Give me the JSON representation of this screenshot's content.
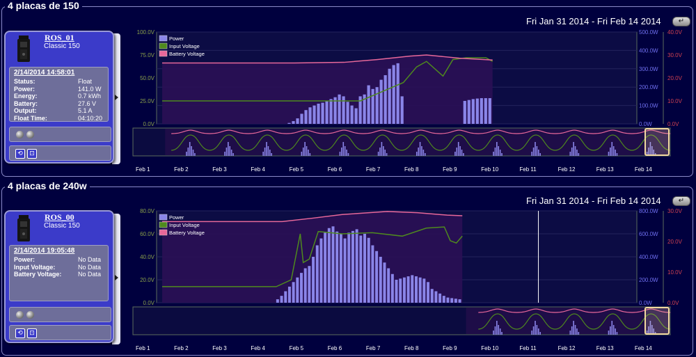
{
  "panels": [
    {
      "title": "4 placas de 150",
      "date_range": "Fri Jan 31 2014 - Fri Feb 14 2014",
      "range_button_icon": "return-arrow-icon",
      "device": {
        "name": "ROS_01",
        "model": "Classic 150",
        "timestamp": "2/14/2014 14:58:01",
        "stats": [
          {
            "label": "Status:",
            "value": "Float"
          },
          {
            "label": "Power:",
            "value": "141.0 W"
          },
          {
            "label": "Energy:",
            "value": "0.7 kWh"
          },
          {
            "label": "Battery:",
            "value": "27.6 V"
          },
          {
            "label": "Output:",
            "value": "5.1 A"
          },
          {
            "label": "Float Time:",
            "value": "04:10:20"
          }
        ]
      },
      "chart_data": {
        "type": "bar",
        "legend": [
          "Power",
          "Input Voltage",
          "Battery Voltage"
        ],
        "legend_position": "top-left",
        "y_left_ticks": [
          "100.0V",
          "75.0V",
          "50.0V",
          "25.0V",
          "0.0V"
        ],
        "y_mid_ticks": [
          "500.0W",
          "400.0W",
          "300.0W",
          "200.0W",
          "100.0W",
          "0.0W"
        ],
        "y_right_ticks": [
          "40.0V",
          "30.0V",
          "20.0V",
          "10.0V",
          "0.0V"
        ],
        "x_ticks": [
          "Feb 1",
          "Feb 2",
          "Feb 3",
          "Feb 4",
          "Feb 5",
          "Feb 6",
          "Feb 7",
          "Feb 8",
          "Feb 9",
          "Feb 10",
          "Feb 11",
          "Feb 12",
          "Feb 13",
          "Feb 14"
        ],
        "power_w": [
          5,
          15,
          30,
          55,
          75,
          90,
          100,
          110,
          115,
          125,
          135,
          145,
          160,
          150,
          120,
          100,
          85,
          150,
          160,
          210,
          190,
          200,
          240,
          265,
          300,
          320,
          330,
          150,
          0,
          0,
          0,
          0,
          0,
          0,
          0,
          0,
          0,
          0,
          0,
          0,
          0,
          0,
          125,
          130,
          135,
          138,
          140,
          140,
          140
        ],
        "input_voltage_v": [
          [
            0,
            25
          ],
          [
            0.3,
            25
          ],
          [
            0.6,
            25
          ],
          [
            0.73,
            45
          ],
          [
            0.77,
            62
          ],
          [
            0.8,
            68
          ],
          [
            0.85,
            52
          ],
          [
            0.88,
            70
          ],
          [
            0.92,
            72
          ],
          [
            0.96,
            72
          ],
          [
            0.98,
            72
          ],
          [
            1.0,
            68
          ]
        ],
        "battery_voltage_v": [
          [
            0,
            26.5
          ],
          [
            0.4,
            26.5
          ],
          [
            0.55,
            26.8
          ],
          [
            0.65,
            28.0
          ],
          [
            0.75,
            29.5
          ],
          [
            0.8,
            30.0
          ],
          [
            0.85,
            29.3
          ],
          [
            0.9,
            28.6
          ],
          [
            1.0,
            27.8
          ]
        ],
        "colors": {
          "power": "#8a85e8",
          "input_voltage": "#4f8a1e",
          "battery_voltage": "#e8689a",
          "plot_fill": "#2a0f55",
          "plot_bg": "#0c0c44"
        }
      }
    },
    {
      "title": "4 placas de 240w",
      "date_range": "Fri Jan 31 2014 - Fri Feb 14 2014",
      "range_button_icon": "return-arrow-icon",
      "device": {
        "name": "ROS_00",
        "model": "Classic 150",
        "timestamp": "2/14/2014 19:05:48",
        "stats": [
          {
            "label": "Power:",
            "value": "No Data"
          },
          {
            "label": "Input Voltage:",
            "value": "No Data"
          },
          {
            "label": "Battery Voltage:",
            "value": "No Data"
          }
        ]
      },
      "chart_data": {
        "type": "bar",
        "legend": [
          "Power",
          "Input Voltage",
          "Battery Voltage"
        ],
        "legend_position": "top-left",
        "y_left_ticks": [
          "80.0V",
          "60.0V",
          "40.0V",
          "20.0V",
          "0.0V"
        ],
        "y_mid_ticks": [
          "800.0W",
          "600.0W",
          "400.0W",
          "200.0W",
          "0.0W"
        ],
        "y_right_ticks": [
          "30.0V",
          "20.0V",
          "10.0V",
          "0.0V"
        ],
        "x_ticks": [
          "Feb 1",
          "Feb 2",
          "Feb 3",
          "Feb 4",
          "Feb 5",
          "Feb 6",
          "Feb 7",
          "Feb 8",
          "Feb 9",
          "Feb 10",
          "Feb 11",
          "Feb 12",
          "Feb 13",
          "Feb 14"
        ],
        "power_w": [
          30,
          60,
          100,
          140,
          180,
          220,
          260,
          300,
          320,
          400,
          500,
          560,
          610,
          650,
          665,
          620,
          600,
          560,
          610,
          625,
          640,
          585,
          600,
          565,
          500,
          450,
          400,
          350,
          300,
          250,
          200,
          210,
          220,
          230,
          240,
          230,
          220,
          210,
          180,
          120,
          100,
          80,
          60,
          45,
          40,
          35,
          30
        ],
        "input_voltage_v": [
          [
            0,
            14
          ],
          [
            0.38,
            14
          ],
          [
            0.43,
            20
          ],
          [
            0.46,
            60
          ],
          [
            0.47,
            35
          ],
          [
            0.49,
            38
          ],
          [
            0.52,
            62
          ],
          [
            0.6,
            60
          ],
          [
            0.7,
            61
          ],
          [
            0.8,
            58
          ],
          [
            0.88,
            65
          ],
          [
            0.94,
            66
          ],
          [
            0.96,
            54
          ],
          [
            0.98,
            52
          ],
          [
            1.0,
            58
          ]
        ],
        "battery_voltage_v": [
          [
            0,
            26.5
          ],
          [
            0.4,
            26.5
          ],
          [
            0.5,
            27.6
          ],
          [
            0.6,
            28.8
          ],
          [
            0.75,
            29.8
          ],
          [
            0.85,
            29.4
          ],
          [
            0.95,
            28.6
          ],
          [
            1.0,
            28.4
          ]
        ],
        "colors": {
          "power": "#8a85e8",
          "input_voltage": "#4f8a1e",
          "battery_voltage": "#e8689a",
          "plot_fill": "#2a0f55",
          "plot_bg": "#0c0c44"
        }
      }
    }
  ]
}
